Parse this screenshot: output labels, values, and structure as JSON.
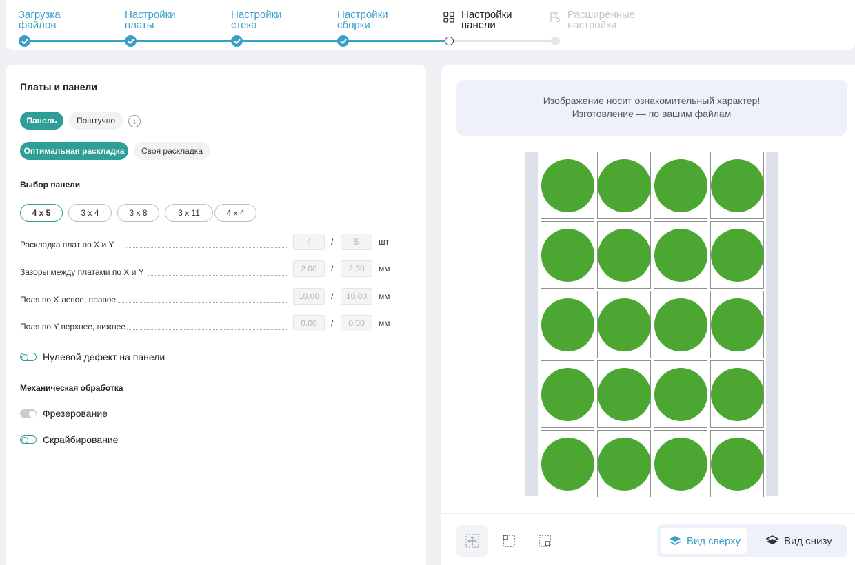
{
  "stepper": {
    "steps": [
      {
        "line1": "Загрузка",
        "line2": "файлов",
        "state": "done"
      },
      {
        "line1": "Настройки",
        "line2": "платы",
        "state": "done"
      },
      {
        "line1": "Настройки",
        "line2": "стека",
        "state": "done"
      },
      {
        "line1": "Настройки",
        "line2": "сборки",
        "state": "done"
      },
      {
        "line1": "Настройки",
        "line2": "панели",
        "state": "active",
        "icon": "grid-icon"
      },
      {
        "line1": "Расширенные",
        "line2": "настройки",
        "state": "disabled",
        "icon": "flag-settings-icon"
      }
    ]
  },
  "left": {
    "title": "Платы и панели",
    "mode_tabs": [
      "Панель",
      "Поштучно"
    ],
    "layout_tabs": [
      "Оптимальная раскладка",
      "Своя раскладка"
    ],
    "panel_select_title": "Выбор панели",
    "panel_options": [
      "4 x 5",
      "3 x 4",
      "3 x 8",
      "3 x 11",
      "4 x 4"
    ],
    "panel_selected": "4 x 5",
    "params": [
      {
        "label": "Раскладка плат по X и Y",
        "x": "4",
        "y": "5",
        "unit": "шт"
      },
      {
        "label": "Зазоры между платами по X и Y",
        "x": "2.00",
        "y": "2.00",
        "unit": "мм"
      },
      {
        "label": "Поля по X левое, правое",
        "x": "10.00",
        "y": "10.00",
        "unit": "мм"
      },
      {
        "label": "Поля по Y верхнее, нижнее",
        "x": "0.00",
        "y": "0.00",
        "unit": "мм"
      }
    ],
    "separator": "/",
    "zero_defect_label": "Нулевой дефект на панели",
    "mech_title": "Механическая обработка",
    "milling_label": "Фрезерование",
    "scribing_label": "Скрайбирование"
  },
  "right": {
    "notice_line1": "Изображение носит ознакомительный характер!",
    "notice_line2": "Изготовление — по вашим файлам",
    "panel_cols": 4,
    "panel_rows": 5,
    "board_color": "#4ca632",
    "view_top": "Вид сверху",
    "view_bottom": "Вид снизу",
    "tools": [
      "fit-view-icon",
      "board-outline-icon",
      "panel-outline-icon"
    ]
  },
  "colors": {
    "accent": "#2e9e96",
    "step_done": "#3aa0c8",
    "board": "#4ca632"
  }
}
